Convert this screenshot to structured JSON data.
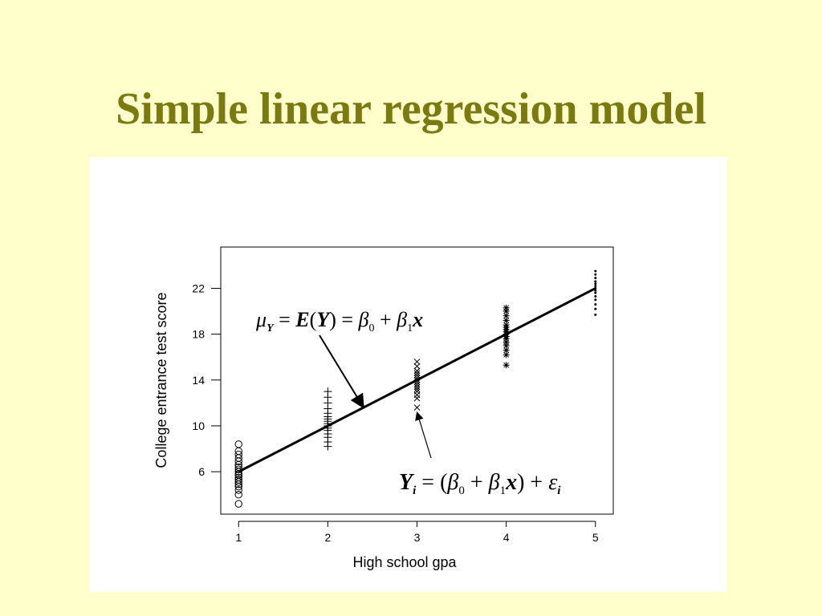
{
  "slide": {
    "title": "Simple linear regression model"
  },
  "chart_data": {
    "type": "scatter",
    "xlabel": "High school gpa",
    "ylabel": "College entrance test score",
    "x_ticks": [
      1,
      2,
      3,
      4,
      5
    ],
    "y_ticks": [
      6,
      10,
      14,
      18,
      22
    ],
    "xlim": [
      0.8,
      5.2
    ],
    "ylim": [
      2.3,
      25.6
    ],
    "grid": false,
    "series": [
      {
        "marker": "circle",
        "x": 1,
        "y": [
          3.2,
          4.0,
          4.4,
          4.7,
          4.9,
          5.1,
          5.3,
          5.5,
          5.7,
          5.8,
          6.0,
          6.2,
          6.4,
          6.6,
          6.9,
          7.2,
          7.5,
          7.8,
          8.4
        ]
      },
      {
        "marker": "plus",
        "x": 2,
        "y": [
          8.2,
          8.6,
          9.0,
          9.3,
          9.6,
          9.8,
          10.0,
          10.2,
          10.4,
          10.6,
          10.8,
          11.1,
          11.5,
          12.0,
          12.5,
          13.0
        ]
      },
      {
        "marker": "cross",
        "x": 3,
        "y": [
          11.6,
          12.4,
          12.7,
          13.0,
          13.2,
          13.4,
          13.6,
          13.8,
          14.0,
          14.2,
          14.4,
          14.6,
          14.8,
          15.2,
          15.6
        ]
      },
      {
        "marker": "asterisk",
        "x": 4,
        "y": [
          15.3,
          16.2,
          16.6,
          17.0,
          17.3,
          17.6,
          17.8,
          18.0,
          18.2,
          18.4,
          18.6,
          18.8,
          19.2,
          19.6,
          20.0,
          20.3
        ]
      },
      {
        "marker": "dot",
        "x": 5,
        "y": [
          19.7,
          20.2,
          20.6,
          21.0,
          21.3,
          21.6,
          21.8,
          22.0,
          22.2,
          22.4,
          22.6,
          22.9,
          23.2,
          23.5
        ]
      }
    ],
    "regression_line": {
      "intercept": 2,
      "slope": 4,
      "x_range": [
        1,
        5
      ]
    },
    "annotations": [
      {
        "name": "mean-equation",
        "text": "μY = E(Y) = β0 + β1x",
        "arrow_to": [
          2.4,
          11.6
        ]
      },
      {
        "name": "observation-equation",
        "text": "Yi = (β0 + β1x) + εi",
        "arrow_to": [
          3.0,
          11.6
        ]
      }
    ]
  }
}
